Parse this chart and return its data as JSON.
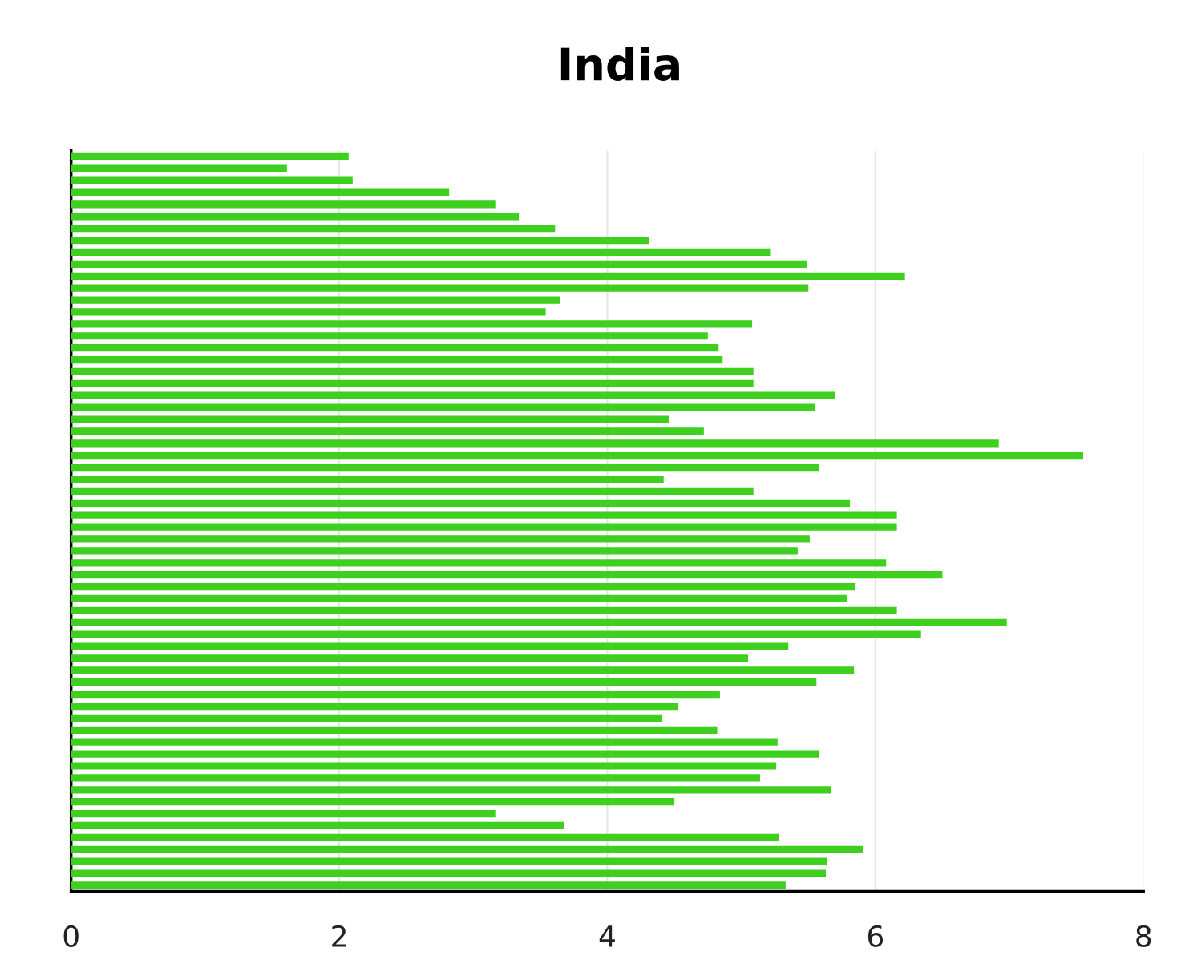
{
  "chart_data": {
    "type": "bar",
    "orientation": "horizontal",
    "title": "India",
    "categories": [
      null,
      null,
      null,
      null,
      null,
      null,
      null,
      null,
      null,
      null,
      null,
      null,
      null,
      null,
      null,
      null,
      null,
      null,
      null,
      null,
      null,
      null,
      null,
      null,
      null,
      null,
      null,
      null,
      null,
      null,
      null,
      null,
      null,
      null,
      null,
      null,
      null,
      null,
      null,
      null,
      null,
      null,
      null,
      null,
      null,
      null,
      null,
      null,
      null,
      null,
      null,
      null,
      null,
      null,
      null,
      null,
      null,
      null,
      null,
      null,
      null,
      null
    ],
    "values": [
      2.07,
      1.61,
      2.1,
      2.82,
      3.17,
      3.34,
      3.61,
      4.31,
      5.22,
      5.49,
      6.22,
      5.5,
      3.65,
      3.54,
      5.08,
      4.75,
      4.83,
      4.86,
      5.09,
      5.09,
      5.7,
      5.55,
      4.46,
      4.72,
      6.92,
      7.55,
      5.58,
      4.42,
      5.09,
      5.81,
      6.16,
      6.16,
      5.51,
      5.42,
      6.08,
      6.5,
      5.85,
      5.79,
      6.16,
      6.98,
      6.34,
      5.35,
      5.05,
      5.84,
      5.56,
      4.84,
      4.53,
      4.41,
      4.82,
      5.27,
      5.58,
      5.26,
      5.14,
      5.67,
      4.5,
      3.17,
      3.68,
      5.28,
      5.91,
      5.64,
      5.63,
      5.33
    ],
    "color": "#3ecf1f",
    "xlim": [
      0,
      8
    ],
    "xticks": [
      0,
      2,
      4,
      6,
      8
    ],
    "grid": "x"
  }
}
